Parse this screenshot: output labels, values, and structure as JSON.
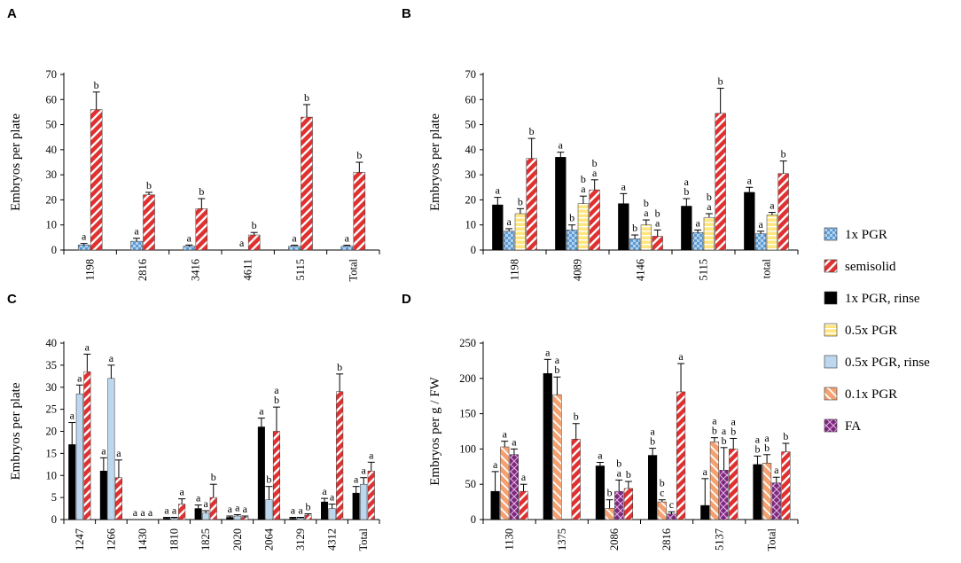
{
  "legend": [
    {
      "key": "pgr1x",
      "label": "1x PGR"
    },
    {
      "key": "semisolid",
      "label": "semisolid"
    },
    {
      "key": "pgr1xRinse",
      "label": "1x PGR, rinse"
    },
    {
      "key": "pgr05x",
      "label": "0.5x PGR"
    },
    {
      "key": "pgr05xRinse",
      "label": "0.5x PGR, rinse"
    },
    {
      "key": "pgr01x",
      "label": "0.1x PGR"
    },
    {
      "key": "fa",
      "label": "FA"
    }
  ],
  "colors": {
    "pgr1x": "#5b9bd5",
    "semisolid": "#e03030",
    "pgr1xRinse": "#000000",
    "pgr05x": "#ffe680",
    "pgr05xRinse": "#bdd7ee",
    "pgr01x": "#f4a070",
    "fa": "#7a2a7a"
  },
  "chart_data": [
    {
      "panel": "A",
      "type": "bar",
      "ylabel": "Embryos per plate",
      "ylim": [
        0,
        70
      ],
      "yticks": [
        0,
        10,
        20,
        30,
        40,
        50,
        60,
        70
      ],
      "categories": [
        "1198",
        "2816",
        "3416",
        "4611",
        "5115",
        "Total"
      ],
      "series": [
        {
          "key": "pgr1x",
          "values": [
            2,
            3.5,
            1.5,
            0,
            1.5,
            1.5
          ],
          "errors": [
            0.6,
            1.2,
            0.5,
            0,
            0.4,
            0.4
          ],
          "letters": [
            "a",
            "a",
            "a",
            "a",
            "a",
            "a"
          ]
        },
        {
          "key": "semisolid",
          "values": [
            56,
            22,
            16.5,
            6,
            53,
            31
          ],
          "errors": [
            7,
            1,
            4,
            1,
            5,
            4
          ],
          "letters": [
            "b",
            "b",
            "b",
            "b",
            "b",
            "b"
          ]
        }
      ]
    },
    {
      "panel": "B",
      "type": "bar",
      "ylabel": "Embryos per plate",
      "ylim": [
        0,
        70
      ],
      "yticks": [
        0,
        10,
        20,
        30,
        40,
        50,
        60,
        70
      ],
      "categories": [
        "1198",
        "4089",
        "4146",
        "5115",
        "total"
      ],
      "series": [
        {
          "key": "pgr1xRinse",
          "values": [
            18,
            37,
            18.5,
            17.5,
            23
          ],
          "errors": [
            3,
            2,
            4,
            3,
            2
          ],
          "letters": [
            "a",
            "a",
            "a",
            "b",
            "a"
          ]
        },
        {
          "key": "pgr1x",
          "values": [
            7.5,
            8,
            4.5,
            7,
            6.5
          ],
          "errors": [
            1,
            2,
            1.5,
            1,
            1
          ],
          "letters": [
            "a",
            "b",
            "b",
            "a",
            "a"
          ]
        },
        {
          "key": "pgr05x",
          "values": [
            14.5,
            18.5,
            10,
            13,
            14
          ],
          "errors": [
            2,
            3,
            2,
            1.5,
            1
          ],
          "letters": [
            "b",
            "a",
            "a",
            "a",
            "a"
          ]
        },
        {
          "key": "semisolid",
          "values": [
            36.5,
            24,
            5.5,
            54.5,
            30.5
          ],
          "errors": [
            8,
            4,
            2.5,
            10,
            5
          ],
          "letters": [
            "b",
            "a",
            "a",
            "b",
            "b"
          ]
        }
      ],
      "extra_letters": [
        {
          "category": "4089",
          "series_index": 2,
          "letter": "b"
        },
        {
          "category": "4089",
          "series_index": 3,
          "letter": "b"
        },
        {
          "category": "4146",
          "series_index": 2,
          "letter": "b"
        },
        {
          "category": "4146",
          "series_index": 3,
          "letter": "b"
        },
        {
          "category": "5115",
          "series_index": 0,
          "letter": "a"
        },
        {
          "category": "5115",
          "series_index": 2,
          "letter": "b"
        }
      ]
    },
    {
      "panel": "C",
      "type": "bar",
      "ylabel": "Embryos per plate",
      "ylim": [
        0,
        40
      ],
      "yticks": [
        0,
        5,
        10,
        15,
        20,
        25,
        30,
        35,
        40
      ],
      "categories": [
        "1247",
        "1266",
        "1430",
        "1810",
        "1825",
        "2020",
        "2064",
        "3129",
        "4312",
        "Total"
      ],
      "series": [
        {
          "key": "pgr1xRinse",
          "values": [
            17,
            11,
            0,
            0.3,
            2.5,
            0.5,
            21,
            0.3,
            4,
            6
          ],
          "errors": [
            5,
            3,
            0,
            0.2,
            0.8,
            0.3,
            2,
            0.2,
            0.8,
            1.5
          ],
          "letters": [
            "a",
            "a",
            "a",
            "a",
            "a",
            "a",
            "a",
            "a",
            "a",
            "a"
          ]
        },
        {
          "key": "pgr05xRinse",
          "values": [
            28.5,
            32,
            0,
            0.3,
            1.5,
            0.8,
            4.5,
            0.3,
            2.5,
            8
          ],
          "errors": [
            2,
            3,
            0,
            0.2,
            0.5,
            0.3,
            3,
            0.2,
            1,
            1.5
          ],
          "letters": [
            "a",
            "a",
            "a",
            "a",
            "a",
            "a",
            "b",
            "a",
            "a",
            "a"
          ]
        },
        {
          "key": "semisolid",
          "values": [
            33.5,
            9.5,
            0,
            3.5,
            5,
            0.5,
            20,
            1,
            29,
            11
          ],
          "errors": [
            4,
            4,
            0,
            1.2,
            3,
            0.3,
            5.5,
            0.3,
            4,
            2
          ],
          "letters": [
            "a",
            "a",
            "a",
            "a",
            "b",
            "a",
            "b",
            "b",
            "b",
            "a"
          ]
        }
      ],
      "extra_letters": [
        {
          "category": "2064",
          "series_index": 2,
          "letter": "a"
        }
      ]
    },
    {
      "panel": "D",
      "type": "bar",
      "ylabel": "Embryos per g / FW",
      "ylim": [
        0,
        250
      ],
      "yticks": [
        0,
        50,
        100,
        150,
        200,
        250
      ],
      "categories": [
        "1130",
        "1375",
        "2086",
        "2816",
        "5137",
        "Total"
      ],
      "series": [
        {
          "key": "pgr1xRinse",
          "values": [
            40,
            207,
            76,
            91,
            20,
            78
          ],
          "errors": [
            28,
            20,
            5,
            10,
            38,
            12
          ],
          "letters": [
            "a",
            "a",
            "a",
            "b",
            "a",
            "b"
          ]
        },
        {
          "key": "pgr01x",
          "values": [
            103,
            177,
            16,
            25,
            110,
            80
          ],
          "errors": [
            8,
            25,
            12,
            3,
            6,
            12
          ],
          "letters": [
            "a",
            "b",
            "b",
            "c",
            "b",
            "b"
          ]
        },
        {
          "key": "fa",
          "values": [
            92,
            null,
            40,
            8,
            70,
            52
          ],
          "errors": [
            8,
            null,
            16,
            3,
            32,
            8
          ],
          "letters": [
            "a",
            "",
            "a",
            "c",
            "b",
            "a"
          ]
        },
        {
          "key": "semisolid",
          "values": [
            40,
            114,
            44,
            181,
            100,
            96
          ],
          "errors": [
            10,
            22,
            10,
            40,
            15,
            12
          ],
          "letters": [
            "a",
            "b",
            "b",
            "a",
            "b",
            "b"
          ]
        }
      ],
      "extra_letters": [
        {
          "category": "1375",
          "series_index": 1,
          "letter": "a"
        },
        {
          "category": "2086",
          "series_index": 2,
          "letter": "b"
        },
        {
          "category": "2816",
          "series_index": 0,
          "letter": "a"
        },
        {
          "category": "2816",
          "series_index": 1,
          "letter": "b"
        },
        {
          "category": "5137",
          "series_index": 1,
          "letter": "a"
        },
        {
          "category": "5137",
          "series_index": 2,
          "letter": "a"
        },
        {
          "category": "5137",
          "series_index": 3,
          "letter": "a"
        },
        {
          "category": "Total",
          "series_index": 0,
          "letter": "a"
        },
        {
          "category": "Total",
          "series_index": 1,
          "letter": "a"
        }
      ]
    }
  ]
}
